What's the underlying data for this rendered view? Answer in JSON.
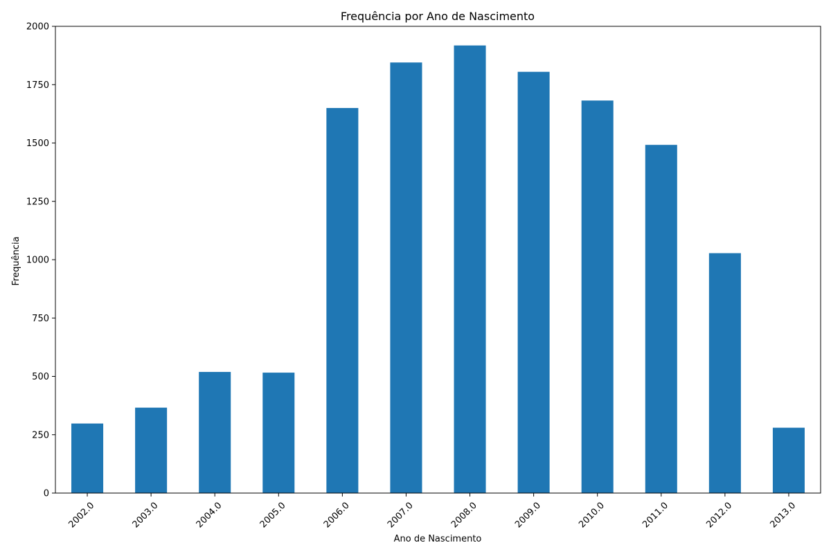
{
  "chart_data": {
    "type": "bar",
    "title": "Frequência por Ano de Nascimento",
    "xlabel": "Ano de Nascimento",
    "ylabel": "Frequência",
    "categories": [
      "2002.0",
      "2003.0",
      "2004.0",
      "2005.0",
      "2006.0",
      "2007.0",
      "2008.0",
      "2009.0",
      "2010.0",
      "2011.0",
      "2012.0",
      "2013.0"
    ],
    "values": [
      298,
      366,
      519,
      516,
      1650,
      1845,
      1918,
      1805,
      1682,
      1492,
      1028,
      280
    ],
    "ylim": [
      0,
      2000
    ],
    "yticks": [
      0,
      250,
      500,
      750,
      1000,
      1250,
      1500,
      1750,
      2000
    ],
    "bar_color": "#1f77b4",
    "grid": false,
    "legend": false,
    "x_tick_rotation": 45
  }
}
